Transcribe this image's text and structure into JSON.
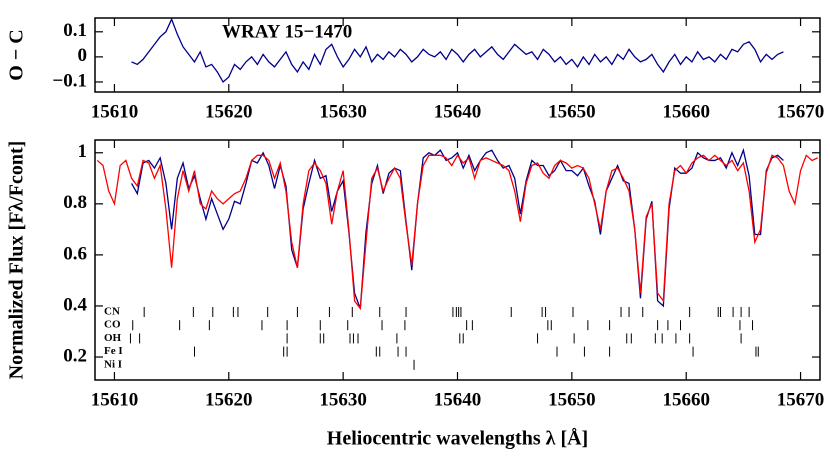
{
  "chart_data": [
    {
      "type": "line",
      "annotation": "WRAY 15−1470",
      "y_label": "O − C",
      "xlim": [
        15608.3,
        15671.7
      ],
      "ylim": [
        -0.14,
        0.155
      ],
      "xticks": [
        15610,
        15620,
        15630,
        15640,
        15650,
        15660,
        15670
      ],
      "yticks": [
        {
          "value": -0.1,
          "label": "−0.1"
        },
        0,
        0.1
      ],
      "series": [
        {
          "color": "#00008b",
          "x": [
            15611.5,
            15612,
            15612.5,
            15613,
            15613.5,
            15614,
            15614.5,
            15615,
            15615.5,
            15616,
            15616.5,
            15617,
            15617.5,
            15618,
            15618.5,
            15619,
            15619.5,
            15620,
            15620.5,
            15621,
            15621.5,
            15622,
            15622.5,
            15623,
            15623.5,
            15624,
            15624.5,
            15625,
            15625.5,
            15626,
            15626.5,
            15627,
            15627.5,
            15628,
            15628.5,
            15629,
            15629.5,
            15630,
            15630.5,
            15631,
            15631.5,
            15632,
            15632.5,
            15633,
            15633.5,
            15634,
            15634.5,
            15635,
            15635.5,
            15636,
            15636.5,
            15637,
            15637.5,
            15638,
            15638.5,
            15639,
            15639.5,
            15640,
            15640.5,
            15641,
            15641.5,
            15642,
            15642.5,
            15643,
            15643.5,
            15644,
            15644.5,
            15645,
            15645.5,
            15646,
            15646.5,
            15647,
            15647.5,
            15648,
            15648.5,
            15649,
            15649.5,
            15650,
            15650.5,
            15651,
            15651.5,
            15652,
            15652.5,
            15653,
            15653.5,
            15654,
            15654.5,
            15655,
            15655.5,
            15656,
            15656.5,
            15657,
            15657.5,
            15658,
            15658.5,
            15659,
            15659.5,
            15660,
            15660.5,
            15661,
            15661.5,
            15662,
            15662.5,
            15663,
            15663.5,
            15664,
            15664.5,
            15665,
            15665.5,
            15666,
            15666.5,
            15667,
            15667.5,
            15668,
            15668.5
          ],
          "values": [
            -0.02,
            -0.03,
            -0.01,
            0.02,
            0.05,
            0.08,
            0.1,
            0.15,
            0.09,
            0.04,
            0.01,
            -0.02,
            0.02,
            -0.04,
            -0.03,
            -0.06,
            -0.1,
            -0.08,
            -0.03,
            -0.05,
            -0.02,
            0.0,
            -0.03,
            0.01,
            -0.02,
            -0.04,
            -0.01,
            0.02,
            -0.03,
            -0.06,
            -0.02,
            -0.05,
            0.01,
            -0.03,
            0.03,
            0.05,
            0.0,
            -0.04,
            -0.01,
            0.03,
            0.0,
            0.04,
            -0.02,
            0.01,
            -0.01,
            0.02,
            0.0,
            0.03,
            0.01,
            -0.02,
            0.0,
            0.03,
            0.01,
            0.0,
            0.02,
            -0.01,
            0.03,
            0.01,
            -0.02,
            0.01,
            0.03,
            0.0,
            0.02,
            0.04,
            0.01,
            -0.01,
            0.02,
            0.05,
            0.03,
            0.01,
            0.02,
            -0.01,
            0.03,
            0.01,
            -0.02,
            0.0,
            -0.03,
            -0.01,
            -0.04,
            0.0,
            -0.03,
            0.01,
            -0.02,
            0.0,
            -0.03,
            0.01,
            -0.01,
            0.03,
            0.0,
            -0.02,
            -0.01,
            0.01,
            -0.03,
            -0.06,
            -0.02,
            0.01,
            -0.03,
            0.0,
            -0.02,
            0.02,
            -0.01,
            0.0,
            -0.02,
            0.01,
            -0.01,
            0.03,
            0.02,
            0.05,
            0.06,
            0.03,
            -0.02,
            0.01,
            -0.01,
            0.01,
            0.02
          ]
        }
      ]
    },
    {
      "type": "line",
      "x_label": "Heliocentric wavelengths λ [Å]",
      "y_label": "Normalized Flux [Fλ/Fcont]",
      "xlim": [
        15608.3,
        15671.7
      ],
      "ylim": [
        0.11,
        1.05
      ],
      "xticks": [
        15610,
        15620,
        15630,
        15640,
        15650,
        15660,
        15670
      ],
      "yticks": [
        0.2,
        0.4,
        0.6,
        0.8,
        1
      ],
      "series": [
        {
          "color": "#00008b",
          "x": [
            15611.5,
            15612,
            15612.5,
            15613,
            15613.5,
            15614,
            15614.5,
            15615,
            15615.5,
            15616,
            15616.5,
            15617,
            15617.5,
            15618,
            15618.5,
            15619,
            15619.5,
            15620,
            15620.5,
            15621,
            15621.5,
            15622,
            15622.5,
            15623,
            15623.5,
            15624,
            15624.5,
            15625,
            15625.5,
            15626,
            15626.5,
            15627,
            15627.5,
            15628,
            15628.5,
            15629,
            15629.5,
            15630,
            15630.5,
            15631,
            15631.5,
            15632,
            15632.5,
            15633,
            15633.5,
            15634,
            15634.5,
            15635,
            15635.5,
            15636,
            15636.5,
            15637,
            15637.5,
            15638,
            15638.5,
            15639,
            15639.5,
            15640,
            15640.5,
            15641,
            15641.5,
            15642,
            15642.5,
            15643,
            15643.5,
            15644,
            15644.5,
            15645,
            15645.5,
            15646,
            15646.5,
            15647,
            15647.5,
            15648,
            15648.5,
            15649,
            15649.5,
            15650,
            15650.5,
            15651,
            15651.5,
            15652,
            15652.5,
            15653,
            15653.5,
            15654,
            15654.5,
            15655,
            15655.5,
            15656,
            15656.5,
            15657,
            15657.5,
            15658,
            15658.5,
            15659,
            15659.5,
            15660,
            15660.5,
            15661,
            15661.5,
            15662,
            15662.5,
            15663,
            15663.5,
            15664,
            15664.5,
            15665,
            15665.5,
            15666,
            15666.5,
            15667,
            15667.5,
            15668,
            15668.5
          ],
          "values": [
            0.88,
            0.84,
            0.96,
            0.97,
            0.94,
            0.98,
            0.88,
            0.7,
            0.9,
            0.96,
            0.86,
            0.91,
            0.82,
            0.74,
            0.82,
            0.76,
            0.7,
            0.74,
            0.81,
            0.8,
            0.88,
            0.97,
            0.96,
            1.0,
            0.95,
            0.86,
            0.95,
            0.87,
            0.62,
            0.55,
            0.78,
            0.88,
            0.97,
            0.9,
            0.91,
            0.77,
            0.85,
            0.89,
            0.69,
            0.45,
            0.39,
            0.69,
            0.88,
            0.95,
            0.84,
            0.92,
            0.94,
            0.93,
            0.73,
            0.54,
            0.8,
            0.98,
            1.0,
            0.99,
            1.01,
            0.97,
            0.98,
            1.0,
            0.94,
            0.99,
            0.93,
            0.97,
            1.0,
            1.01,
            0.97,
            0.94,
            0.95,
            0.9,
            0.76,
            0.89,
            0.97,
            0.95,
            0.95,
            0.91,
            0.93,
            0.97,
            0.93,
            0.93,
            0.91,
            0.94,
            0.87,
            0.81,
            0.68,
            0.85,
            0.9,
            0.95,
            0.89,
            0.88,
            0.7,
            0.43,
            0.74,
            0.81,
            0.42,
            0.4,
            0.78,
            0.94,
            0.92,
            0.92,
            0.94,
            1.0,
            0.98,
            0.97,
            0.97,
            0.98,
            0.94,
            1.0,
            0.95,
            1.01,
            0.91,
            0.68,
            0.68,
            0.93,
            0.98,
            0.99,
            0.97
          ]
        },
        {
          "color": "#ff0000",
          "x": [
            15608.5,
            15609,
            15609.5,
            15610,
            15610.5,
            15611,
            15611.5,
            15612,
            15612.5,
            15613,
            15613.5,
            15614,
            15614.5,
            15615,
            15615.5,
            15616,
            15616.5,
            15617,
            15617.5,
            15618,
            15618.5,
            15619,
            15619.5,
            15620,
            15620.5,
            15621,
            15621.5,
            15622,
            15622.5,
            15623,
            15623.5,
            15624,
            15624.5,
            15625,
            15625.5,
            15626,
            15626.5,
            15627,
            15627.5,
            15628,
            15628.5,
            15629,
            15629.5,
            15630,
            15630.5,
            15631,
            15631.5,
            15632,
            15632.5,
            15633,
            15633.5,
            15634,
            15634.5,
            15635,
            15635.5,
            15636,
            15636.5,
            15637,
            15637.5,
            15638,
            15638.5,
            15639,
            15639.5,
            15640,
            15640.5,
            15641,
            15641.5,
            15642,
            15642.5,
            15643,
            15643.5,
            15644,
            15644.5,
            15645,
            15645.5,
            15646,
            15646.5,
            15647,
            15647.5,
            15648,
            15648.5,
            15649,
            15649.5,
            15650,
            15650.5,
            15651,
            15651.5,
            15652,
            15652.5,
            15653,
            15653.5,
            15654,
            15654.5,
            15655,
            15655.5,
            15656,
            15656.5,
            15657,
            15657.5,
            15658,
            15658.5,
            15659,
            15659.5,
            15660,
            15660.5,
            15661,
            15661.5,
            15662,
            15662.5,
            15663,
            15663.5,
            15664,
            15664.5,
            15665,
            15665.5,
            15666,
            15666.5,
            15667,
            15667.5,
            15668,
            15668.5,
            15669,
            15669.5,
            15670,
            15670.5,
            15671,
            15671.5
          ],
          "values": [
            0.97,
            0.95,
            0.85,
            0.8,
            0.95,
            0.97,
            0.9,
            0.87,
            0.97,
            0.96,
            0.9,
            0.95,
            0.78,
            0.55,
            0.82,
            0.93,
            0.85,
            0.93,
            0.8,
            0.78,
            0.85,
            0.82,
            0.8,
            0.82,
            0.84,
            0.85,
            0.9,
            0.97,
            0.99,
            0.99,
            0.97,
            0.9,
            0.96,
            0.85,
            0.65,
            0.55,
            0.8,
            0.93,
            0.96,
            0.93,
            0.88,
            0.72,
            0.85,
            0.93,
            0.7,
            0.42,
            0.39,
            0.65,
            0.9,
            0.94,
            0.85,
            0.9,
            0.94,
            0.9,
            0.72,
            0.56,
            0.8,
            0.95,
            0.99,
            0.99,
            0.99,
            0.98,
            0.95,
            0.99,
            0.96,
            0.98,
            0.9,
            0.97,
            0.98,
            0.97,
            0.96,
            0.95,
            0.93,
            0.85,
            0.73,
            0.88,
            0.95,
            0.96,
            0.92,
            0.9,
            0.95,
            0.97,
            0.96,
            0.94,
            0.95,
            0.94,
            0.9,
            0.8,
            0.7,
            0.85,
            0.93,
            0.94,
            0.9,
            0.85,
            0.7,
            0.45,
            0.75,
            0.8,
            0.45,
            0.42,
            0.8,
            0.93,
            0.95,
            0.92,
            0.96,
            0.98,
            0.99,
            0.97,
            0.99,
            0.97,
            0.95,
            0.97,
            0.93,
            0.96,
            0.85,
            0.65,
            0.7,
            0.92,
            0.99,
            0.98,
            0.95,
            0.85,
            0.8,
            0.93,
            0.99,
            0.97,
            0.98
          ]
        }
      ],
      "line_lists": [
        {
          "label": "CN",
          "positions": [
            15612.6,
            15616.9,
            15618.6,
            15620.4,
            15620.8,
            15623.4,
            15626.0,
            15628.8,
            15630.8,
            15633.2,
            15635.5,
            15639.6,
            15639.9,
            15640.1,
            15640.3,
            15644.7,
            15647.4,
            15647.7,
            15650.1,
            15654.3,
            15655.0,
            15656.2,
            15660.3,
            15662.8,
            15663.0,
            15664.1,
            15664.8,
            15665.5
          ]
        },
        {
          "label": "CO",
          "positions": [
            15611.6,
            15615.7,
            15618.3,
            15622.9,
            15625.1,
            15628.0,
            15630.4,
            15633.4,
            15635.4,
            15640.8,
            15641.3,
            15647.9,
            15648.2,
            15651.4,
            15653.3,
            15657.5,
            15658.4,
            15659.5,
            15664.7,
            15665.8
          ]
        },
        {
          "label": "OH",
          "positions": [
            15611.4,
            15612.2,
            15625.1,
            15628.0,
            15628.3,
            15630.6,
            15630.9,
            15631.3,
            15634.7,
            15640.2,
            15640.5,
            15647.0,
            15650.2,
            15654.8,
            15655.2,
            15657.3,
            15657.9,
            15659.1,
            15660.3,
            15664.8
          ]
        },
        {
          "label": "Fe I",
          "positions": [
            15617.0,
            15624.8,
            15625.1,
            15632.9,
            15633.2,
            15634.8,
            15635.5,
            15648.7,
            15651.1,
            15653.3,
            15660.6,
            15666.1,
            15666.3
          ]
        },
        {
          "label": "Ni I",
          "positions": [
            15636.2
          ]
        }
      ]
    }
  ]
}
